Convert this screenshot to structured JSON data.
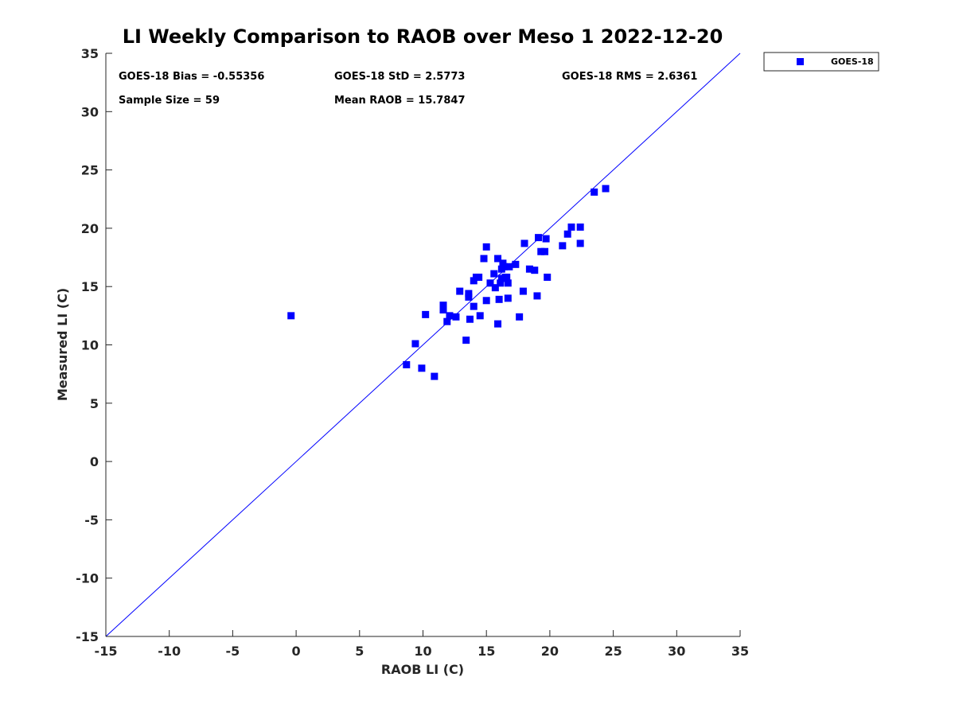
{
  "chart_data": {
    "type": "scatter",
    "title": "LI Weekly Comparison to RAOB over Meso 1 2022-12-20",
    "xlabel": "RAOB LI (C)",
    "ylabel": "Measured LI (C)",
    "xlim": [
      -15,
      35
    ],
    "ylim": [
      -15,
      35
    ],
    "xticks": [
      -15,
      -10,
      -5,
      0,
      5,
      10,
      15,
      20,
      25,
      30,
      35
    ],
    "yticks": [
      -15,
      -10,
      -5,
      0,
      5,
      10,
      15,
      20,
      25,
      30,
      35
    ],
    "grid": false,
    "legend_position": "top-right-outside",
    "reference_line": {
      "from": [
        -15,
        -15
      ],
      "to": [
        35,
        35
      ],
      "color": "#0000ff"
    },
    "stats": {
      "bias": "GOES-18 Bias = -0.55356",
      "std": "GOES-18 StD = 2.5773",
      "rms": "GOES-18 RMS = 2.6361",
      "sample_size": "Sample Size = 59",
      "mean_raob": "Mean RAOB = 15.7847"
    },
    "series": [
      {
        "name": "GOES-18",
        "color": "#0000ff",
        "marker": "square",
        "points": [
          [
            -0.4,
            12.5
          ],
          [
            8.7,
            8.3
          ],
          [
            9.4,
            10.1
          ],
          [
            9.9,
            8.0
          ],
          [
            10.2,
            12.6
          ],
          [
            10.9,
            7.3
          ],
          [
            11.6,
            13.4
          ],
          [
            11.6,
            13.0
          ],
          [
            11.9,
            12.0
          ],
          [
            12.1,
            12.5
          ],
          [
            12.6,
            12.4
          ],
          [
            12.9,
            14.6
          ],
          [
            13.4,
            10.4
          ],
          [
            13.6,
            14.1
          ],
          [
            13.6,
            14.4
          ],
          [
            13.7,
            12.2
          ],
          [
            14.0,
            13.3
          ],
          [
            14.0,
            15.5
          ],
          [
            14.2,
            15.8
          ],
          [
            14.4,
            15.8
          ],
          [
            14.5,
            12.5
          ],
          [
            14.8,
            17.4
          ],
          [
            15.0,
            18.4
          ],
          [
            15.0,
            13.8
          ],
          [
            15.3,
            15.3
          ],
          [
            15.6,
            16.1
          ],
          [
            15.7,
            14.9
          ],
          [
            15.9,
            11.8
          ],
          [
            15.9,
            17.4
          ],
          [
            16.0,
            13.9
          ],
          [
            16.1,
            15.3
          ],
          [
            16.2,
            15.7
          ],
          [
            16.2,
            16.5
          ],
          [
            16.3,
            17.0
          ],
          [
            16.4,
            16.7
          ],
          [
            16.5,
            15.8
          ],
          [
            16.6,
            15.8
          ],
          [
            16.7,
            15.3
          ],
          [
            16.7,
            14.0
          ],
          [
            16.8,
            16.7
          ],
          [
            17.3,
            16.9
          ],
          [
            17.6,
            12.4
          ],
          [
            17.9,
            14.6
          ],
          [
            18.0,
            18.7
          ],
          [
            18.4,
            16.5
          ],
          [
            18.8,
            16.4
          ],
          [
            19.0,
            14.2
          ],
          [
            19.1,
            19.2
          ],
          [
            19.3,
            18.0
          ],
          [
            19.6,
            18.0
          ],
          [
            19.7,
            19.1
          ],
          [
            19.8,
            15.8
          ],
          [
            21.0,
            18.5
          ],
          [
            21.4,
            19.5
          ],
          [
            21.7,
            20.1
          ],
          [
            22.4,
            20.1
          ],
          [
            22.4,
            18.7
          ],
          [
            23.5,
            23.1
          ],
          [
            24.4,
            23.4
          ]
        ]
      }
    ]
  }
}
